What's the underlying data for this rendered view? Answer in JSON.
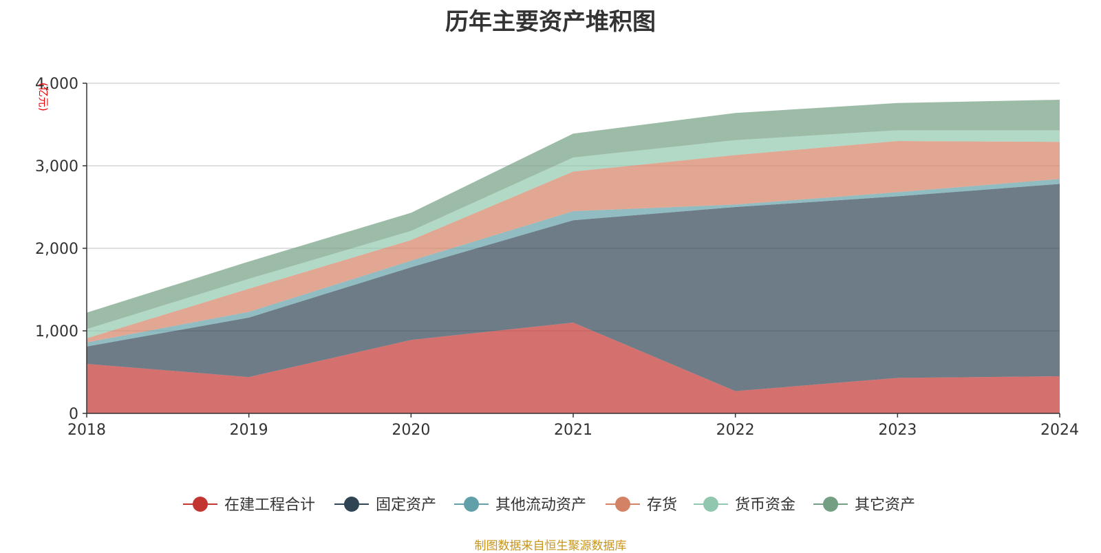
{
  "chart_data": {
    "type": "area",
    "stacked": true,
    "title": "历年主要资产堆积图",
    "unit": "(亿元)",
    "x": [
      "2018",
      "2019",
      "2020",
      "2021",
      "2022",
      "2023",
      "2024"
    ],
    "ylim": [
      0,
      4000
    ],
    "yticks": [
      "0",
      "1,000",
      "2,000",
      "3,000",
      "4,000"
    ],
    "ytick_values": [
      0,
      1000,
      2000,
      3000,
      4000
    ],
    "grid": true,
    "legend_position": "bottom",
    "series": [
      {
        "name": "在建工程合计",
        "color": "#c23531",
        "values": [
          600,
          440,
          890,
          1100,
          270,
          430,
          450
        ]
      },
      {
        "name": "固定资产",
        "color": "#2f4554",
        "values": [
          210,
          720,
          880,
          1240,
          2230,
          2200,
          2330
        ]
      },
      {
        "name": "其他流动资产",
        "color": "#61a0a8",
        "values": [
          50,
          70,
          80,
          110,
          30,
          50,
          60
        ]
      },
      {
        "name": "存货",
        "color": "#d48265",
        "values": [
          50,
          280,
          250,
          480,
          600,
          620,
          450
        ]
      },
      {
        "name": "货币资金",
        "color": "#91c7ae",
        "values": [
          110,
          120,
          110,
          170,
          180,
          130,
          140
        ]
      },
      {
        "name": "其它资产",
        "color": "#749f83",
        "values": [
          200,
          210,
          220,
          290,
          330,
          330,
          370
        ]
      }
    ]
  },
  "source_note": "制图数据来自恒生聚源数据库"
}
